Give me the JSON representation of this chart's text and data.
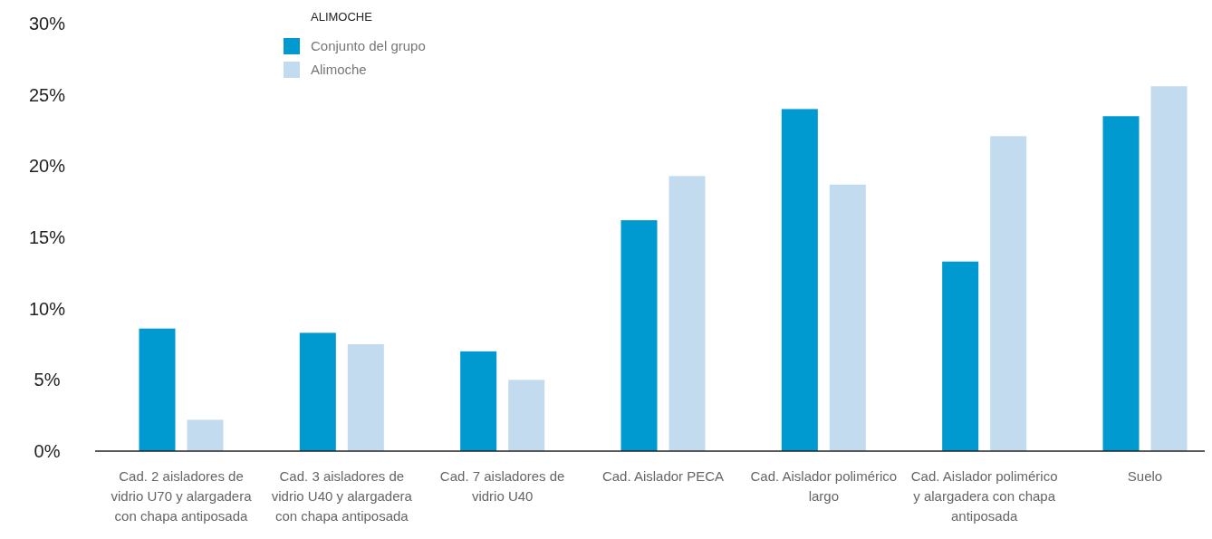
{
  "chart_data": {
    "type": "bar",
    "legend_title": "ALIMOCHE",
    "legend": "top left",
    "categories": [
      "Cad. 2 aisladores de vidrio U70 y alargadera con chapa antiposada",
      "Cad. 3 aisladores de vidrio U40 y alargadera con chapa antiposada",
      "Cad. 7 aisladores de vidrio U40",
      "Cad. Aislador PECA",
      "Cad. Aislador polimérico largo",
      "Cad. Aislador polimérico y alargadera con chapa antiposada",
      "Suelo"
    ],
    "series": [
      {
        "name": "Conjunto del grupo",
        "color": "#0099d0",
        "values": [
          8.6,
          8.3,
          7.0,
          16.2,
          24.0,
          13.3,
          23.5
        ]
      },
      {
        "name": "Alimoche",
        "color": "#c3dbee",
        "values": [
          2.2,
          7.5,
          5.0,
          19.3,
          18.7,
          22.1,
          25.6
        ]
      }
    ],
    "ylim": [
      0,
      30
    ],
    "yticks": [
      {
        "value": 0,
        "label": "0%"
      },
      {
        "value": 5,
        "label": "5%"
      },
      {
        "value": 10,
        "label": "10%"
      },
      {
        "value": 15,
        "label": "15%"
      },
      {
        "value": 20,
        "label": "20%"
      },
      {
        "value": 25,
        "label": "25%"
      },
      {
        "value": 30,
        "label": "30%"
      }
    ],
    "grid": false
  }
}
